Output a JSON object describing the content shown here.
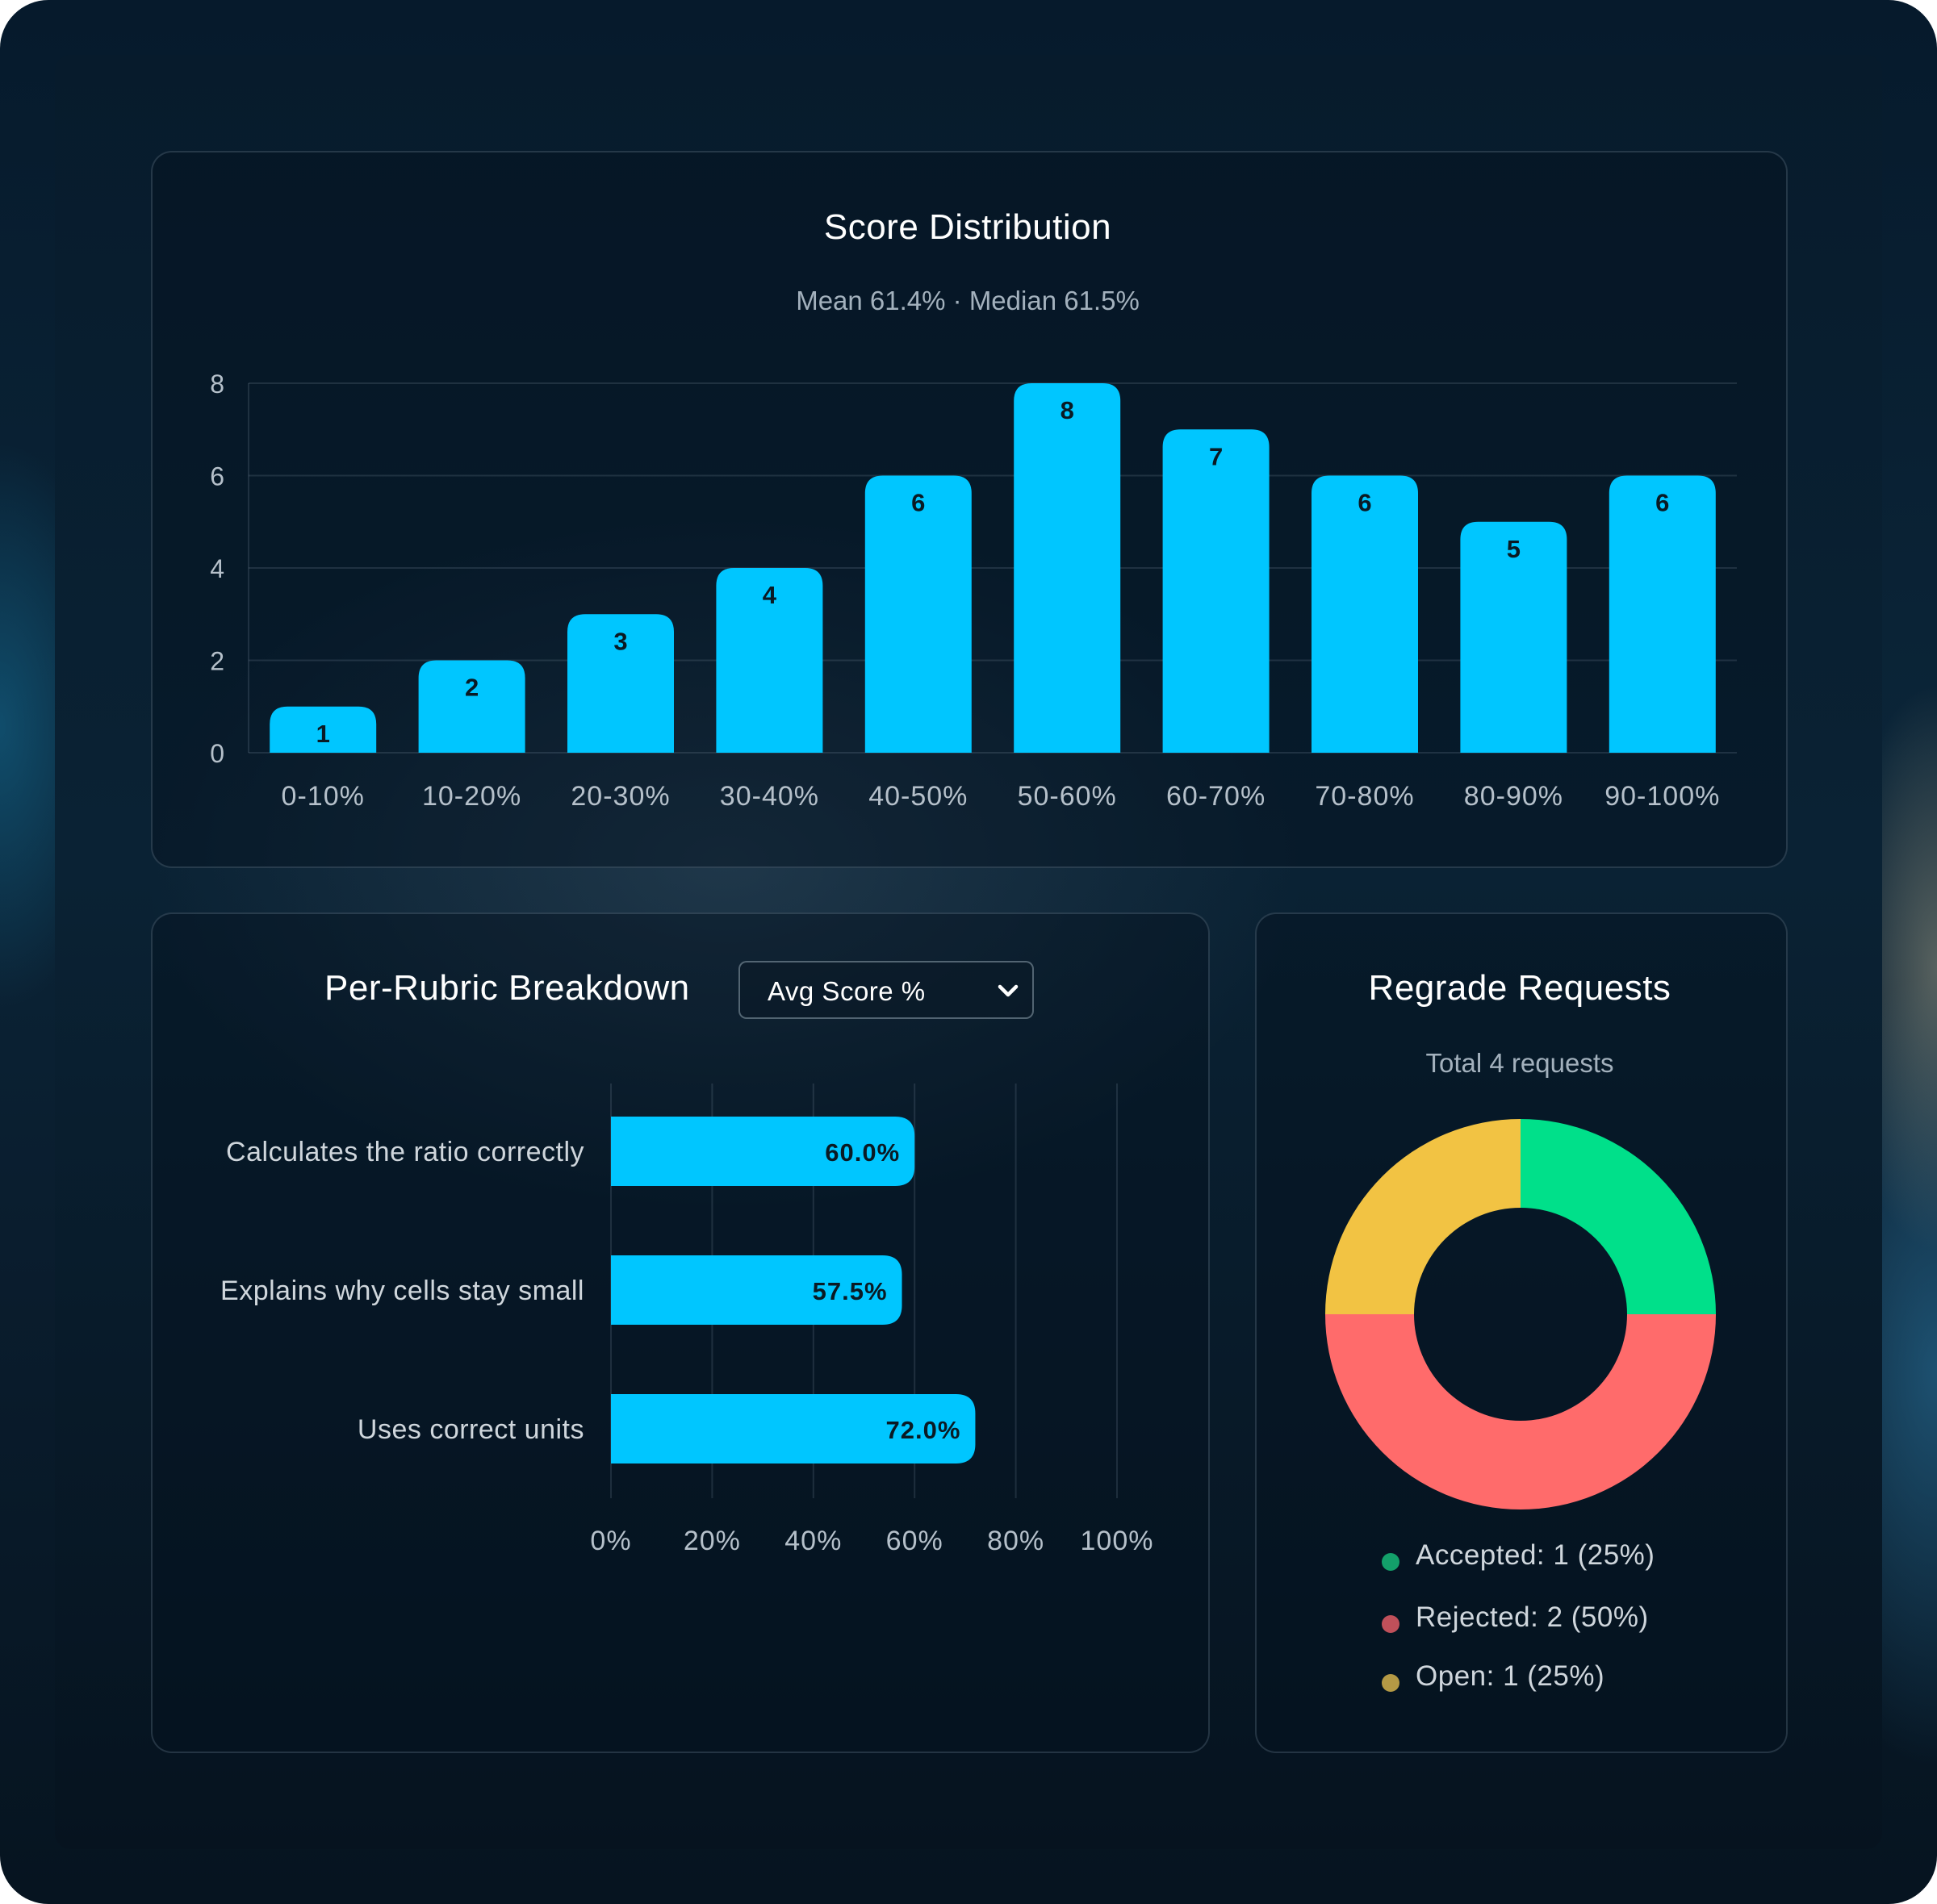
{
  "score_card": {
    "title": "Score Distribution",
    "subtitle": "Mean 61.4% · Median 61.5%"
  },
  "rubric_card": {
    "title": "Per-Rubric Breakdown",
    "select_value": "Avg Score %"
  },
  "regrade_card": {
    "title": "Regrade Requests",
    "subtitle": "Total 4 requests",
    "legend": [
      {
        "label": "Accepted: 1 (25%)",
        "color": "#13a06a"
      },
      {
        "label": "Rejected: 2 (50%)",
        "color": "#c0505a"
      },
      {
        "label": "Open: 1 (25%)",
        "color": "#b59a45"
      }
    ]
  },
  "chart_data": [
    {
      "type": "bar",
      "title": "Score Distribution",
      "subtitle": "Mean 61.4% · Median 61.5%",
      "categories": [
        "0-10%",
        "10-20%",
        "20-30%",
        "30-40%",
        "40-50%",
        "50-60%",
        "60-70%",
        "70-80%",
        "80-90%",
        "90-100%"
      ],
      "values": [
        1,
        2,
        3,
        4,
        6,
        8,
        7,
        6,
        5,
        6
      ],
      "data_labels": [
        "1",
        "2",
        "3",
        "4",
        "6",
        "8",
        "7",
        "6",
        "5",
        "6"
      ],
      "y_ticks": [
        "0",
        "2",
        "4",
        "6",
        "8"
      ],
      "ylim": [
        0,
        8
      ],
      "grid": true,
      "bar_color": "#00c6ff"
    },
    {
      "type": "bar",
      "orientation": "horizontal",
      "title": "Per-Rubric Breakdown",
      "categories": [
        "Calculates the ratio correctly",
        "Explains why cells stay small",
        "Uses correct units"
      ],
      "values": [
        60.0,
        57.5,
        72.0
      ],
      "data_labels": [
        "60.0%",
        "57.5%",
        "72.0%"
      ],
      "x_ticks": [
        "0%",
        "20%",
        "40%",
        "60%",
        "80%",
        "100%"
      ],
      "xlim": [
        0,
        100
      ],
      "grid": true,
      "bar_color": "#00c6ff"
    },
    {
      "type": "pie",
      "variant": "donut",
      "title": "Regrade Requests",
      "subtitle": "Total 4 requests",
      "labels": [
        "Accepted",
        "Rejected",
        "Open"
      ],
      "values": [
        1,
        2,
        1
      ],
      "colors": [
        "#00e08a",
        "#ff6b6b",
        "#f2c343"
      ]
    }
  ]
}
